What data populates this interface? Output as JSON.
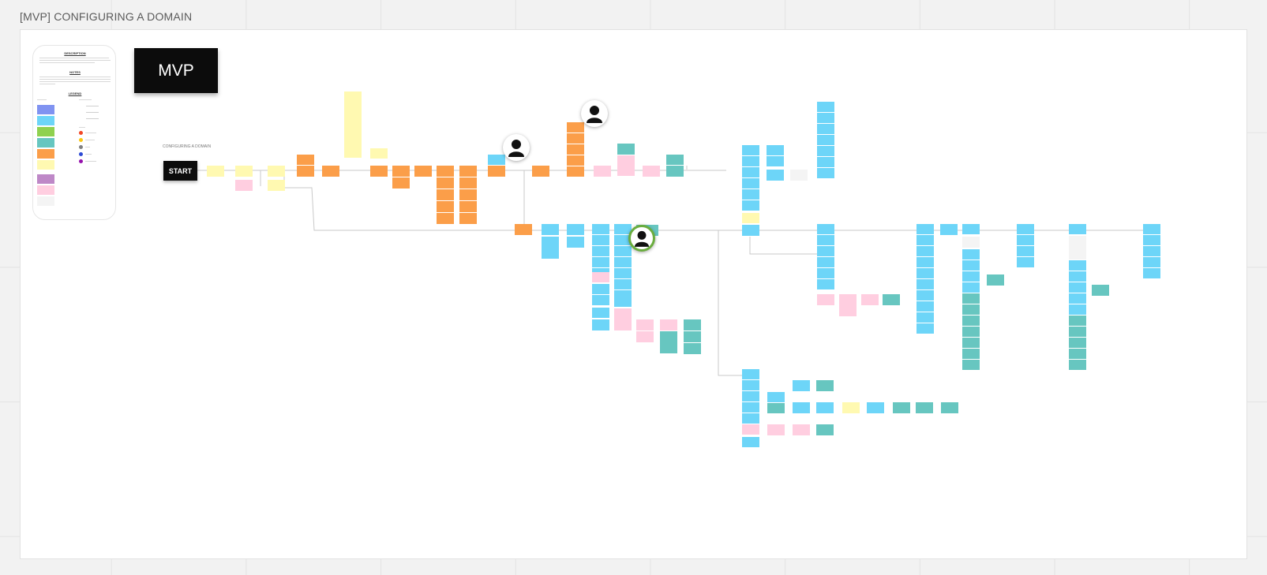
{
  "board": {
    "frame_title": "[MVP] CONFIGURING A DOMAIN",
    "badge_label": "MVP",
    "flow_label": "CONFIGURING A DOMAIN",
    "start_label": "START"
  },
  "legend": {
    "description_title": "DESCRIPTION",
    "notes_title": "NOTES",
    "legend_title": "LEGEND"
  },
  "colors": {
    "blue": "#6dd5f8",
    "orange": "#fb9e49",
    "yellow": "#fff9b1",
    "pink": "#ffcee0",
    "teal": "#67c6c0",
    "gray": "#f4f4f4",
    "purple": "#be88c7",
    "indigo": "#8093f1",
    "green": "#8fd14f",
    "connector": "#c9c9c9",
    "dot_red": "#f24726",
    "dot_yellow": "#fac710",
    "dot_gray": "#808080",
    "dot_blue": "#2d4ad4",
    "dot_purple": "#9510ac"
  },
  "icons": [
    "user-avatar-icon",
    "user-avatar-icon",
    "user-avatar-icon"
  ]
}
